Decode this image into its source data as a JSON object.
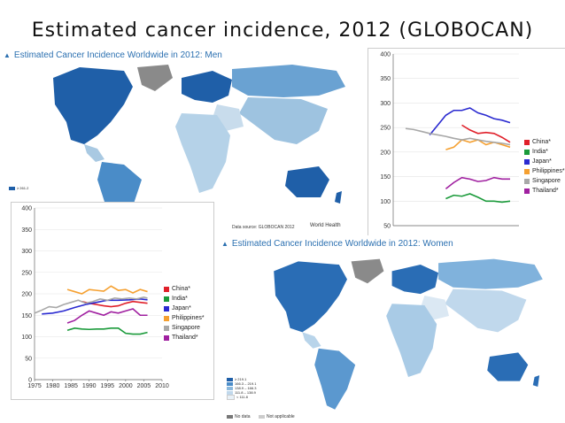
{
  "slide": {
    "title": "Estimated cancer incidence, 2012 (GLOBOCAN)"
  },
  "maps": {
    "men": {
      "title": "Estimated Cancer Incidence Worldwide in 2012: Men",
      "legend_top": "≥ 261.2",
      "source": "Data source: GLOBOCAN 2012",
      "org": "World Health"
    },
    "women": {
      "title": "Estimated Cancer Incidence Worldwide in 2012: Women",
      "legend": [
        "≥ 219.1",
        "166.3 – 219.1",
        "138.9 – 166.3",
        "111.8 – 138.9",
        "< 111.8"
      ],
      "no_data": "No data",
      "not_applicable": "Not applicable"
    }
  },
  "colors": {
    "China*": "#e0202a",
    "India*": "#1a9a3a",
    "Japan*": "#2a2ad0",
    "Philippines*": "#f5a030",
    "Singapore": "#a8a8a8",
    "Thailand*": "#a020a0"
  },
  "chart_data": [
    {
      "type": "line",
      "xlim": [
        1975,
        2010
      ],
      "ylim": [
        0,
        400
      ],
      "yticks": [
        "0",
        "50",
        "100",
        "150",
        "200",
        "250",
        "300",
        "350",
        "400"
      ],
      "xticks": [
        "1975",
        "1980",
        "1985",
        "1990",
        "1995",
        "2000",
        "2005",
        "2010"
      ],
      "legend": "right",
      "series": [
        {
          "name": "China*",
          "x": [
            1988,
            1990,
            1992,
            1994,
            1996,
            1998,
            2000,
            2002,
            2004,
            2006
          ],
          "y": [
            182,
            178,
            175,
            172,
            170,
            172,
            178,
            182,
            180,
            178
          ]
        },
        {
          "name": "India*",
          "x": [
            1984,
            1986,
            1988,
            1990,
            1992,
            1994,
            1996,
            1998,
            2000,
            2002,
            2004,
            2006
          ],
          "y": [
            115,
            120,
            118,
            117,
            118,
            118,
            120,
            120,
            108,
            106,
            106,
            110
          ]
        },
        {
          "name": "Japan*",
          "x": [
            1977,
            1980,
            1983,
            1986,
            1989,
            1992,
            1995,
            1998,
            2001,
            2004,
            2006
          ],
          "y": [
            153,
            155,
            160,
            168,
            175,
            180,
            185,
            185,
            186,
            188,
            186
          ]
        },
        {
          "name": "Philippines*",
          "x": [
            1984,
            1986,
            1988,
            1990,
            1992,
            1994,
            1996,
            1998,
            2000,
            2002,
            2004,
            2006
          ],
          "y": [
            210,
            205,
            200,
            210,
            208,
            206,
            218,
            208,
            210,
            202,
            210,
            205
          ]
        },
        {
          "name": "Singapore",
          "x": [
            1975,
            1977,
            1979,
            1981,
            1983,
            1985,
            1987,
            1989,
            1991,
            1993,
            1995,
            1997,
            1999,
            2001,
            2003,
            2005,
            2006
          ],
          "y": [
            155,
            162,
            170,
            168,
            175,
            180,
            185,
            178,
            182,
            188,
            185,
            190,
            188,
            190,
            188,
            192,
            190
          ]
        },
        {
          "name": "Thailand*",
          "x": [
            1984,
            1986,
            1988,
            1990,
            1992,
            1994,
            1996,
            1998,
            2000,
            2002,
            2004,
            2006
          ],
          "y": [
            132,
            138,
            150,
            160,
            155,
            150,
            158,
            155,
            160,
            165,
            150,
            150
          ]
        }
      ]
    },
    {
      "type": "line",
      "ylim": [
        50,
        400
      ],
      "yticks": [
        "50",
        "100",
        "150",
        "200",
        "250",
        "300",
        "350",
        "400"
      ],
      "legend": "right",
      "series": [
        {
          "name": "China*",
          "y": [
            null,
            null,
            null,
            null,
            null,
            null,
            null,
            255,
            245,
            238,
            240,
            238,
            230,
            220
          ]
        },
        {
          "name": "India*",
          "y": [
            null,
            null,
            null,
            null,
            null,
            105,
            112,
            110,
            115,
            108,
            100,
            100,
            98,
            100
          ]
        },
        {
          "name": "Japan*",
          "y": [
            null,
            null,
            null,
            235,
            255,
            275,
            285,
            285,
            290,
            280,
            275,
            268,
            265,
            260
          ]
        },
        {
          "name": "Philippines*",
          "y": [
            null,
            null,
            null,
            null,
            null,
            205,
            210,
            225,
            220,
            225,
            215,
            220,
            215,
            210
          ]
        },
        {
          "name": "Singapore",
          "y": [
            248,
            246,
            242,
            238,
            235,
            232,
            228,
            225,
            228,
            225,
            222,
            220,
            218,
            215
          ]
        },
        {
          "name": "Thailand*",
          "y": [
            null,
            null,
            null,
            null,
            null,
            125,
            138,
            148,
            145,
            140,
            142,
            148,
            145,
            145
          ]
        }
      ]
    }
  ]
}
